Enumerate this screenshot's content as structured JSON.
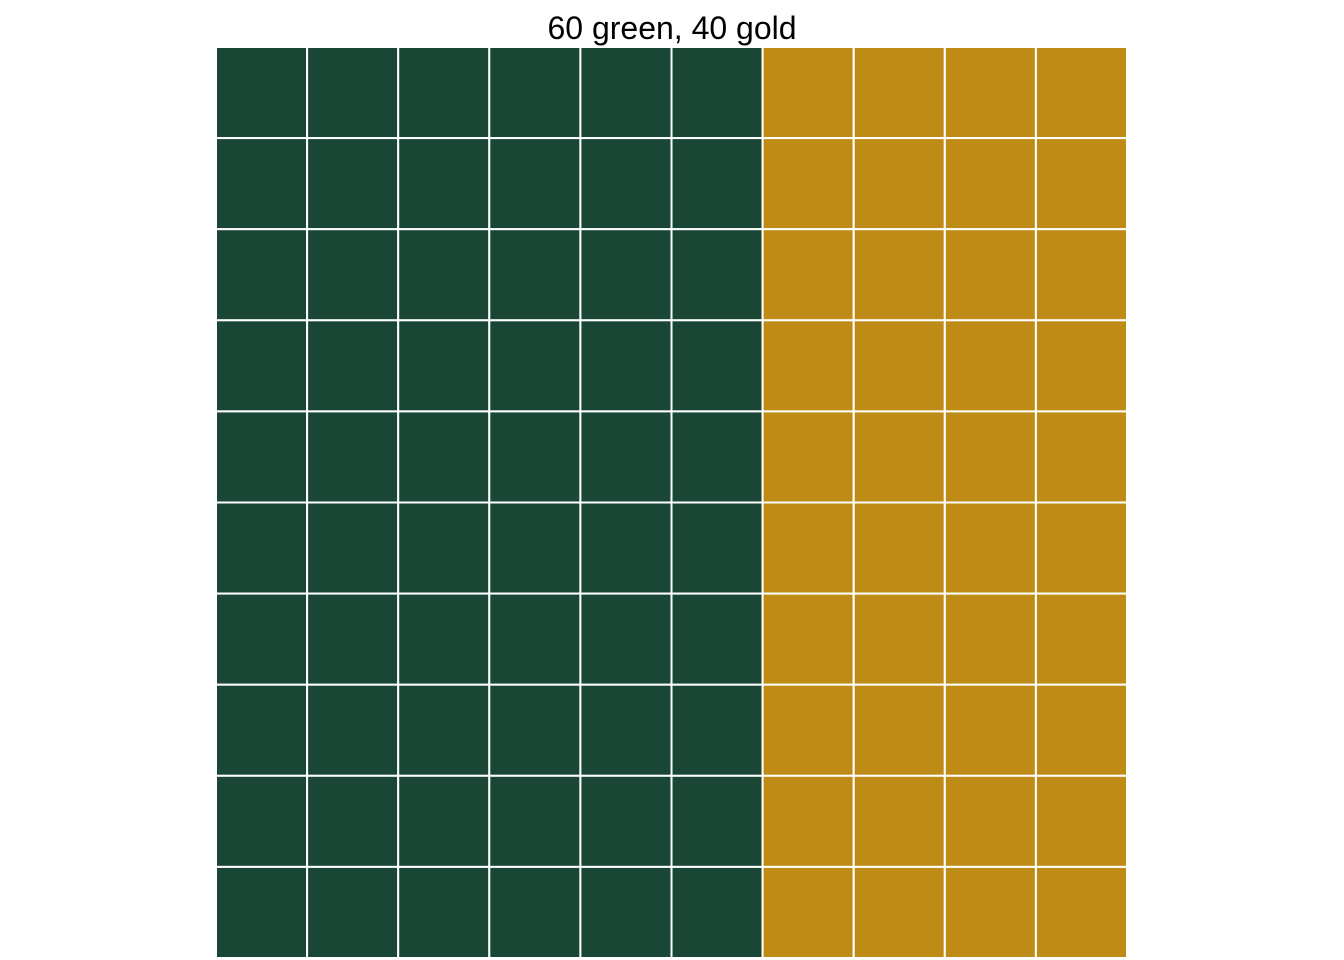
{
  "chart_data": {
    "type": "waffle",
    "title": "60 green, 40 gold",
    "rows": 10,
    "columns": 10,
    "fill_order": "column-wise, left to right",
    "series": [
      {
        "name": "green",
        "count": 60,
        "color": "#1a4735"
      },
      {
        "name": "gold",
        "count": 40,
        "color": "#bd8b16"
      }
    ],
    "cell_border_color": "#ffffff",
    "grid": false,
    "legend": "none"
  }
}
